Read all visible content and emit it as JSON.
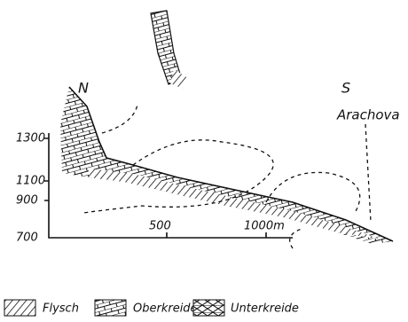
{
  "labels": {
    "north": "N",
    "south": "S",
    "place": "Arachova"
  },
  "y_axis": {
    "ticks": [
      "1300",
      "1100",
      "900",
      "700"
    ]
  },
  "x_axis": {
    "ticks": [
      "500",
      "1000m"
    ]
  },
  "legend": [
    {
      "label": "Flysch"
    },
    {
      "label": "Oberkreide"
    },
    {
      "label": "Unterkreide"
    }
  ]
}
